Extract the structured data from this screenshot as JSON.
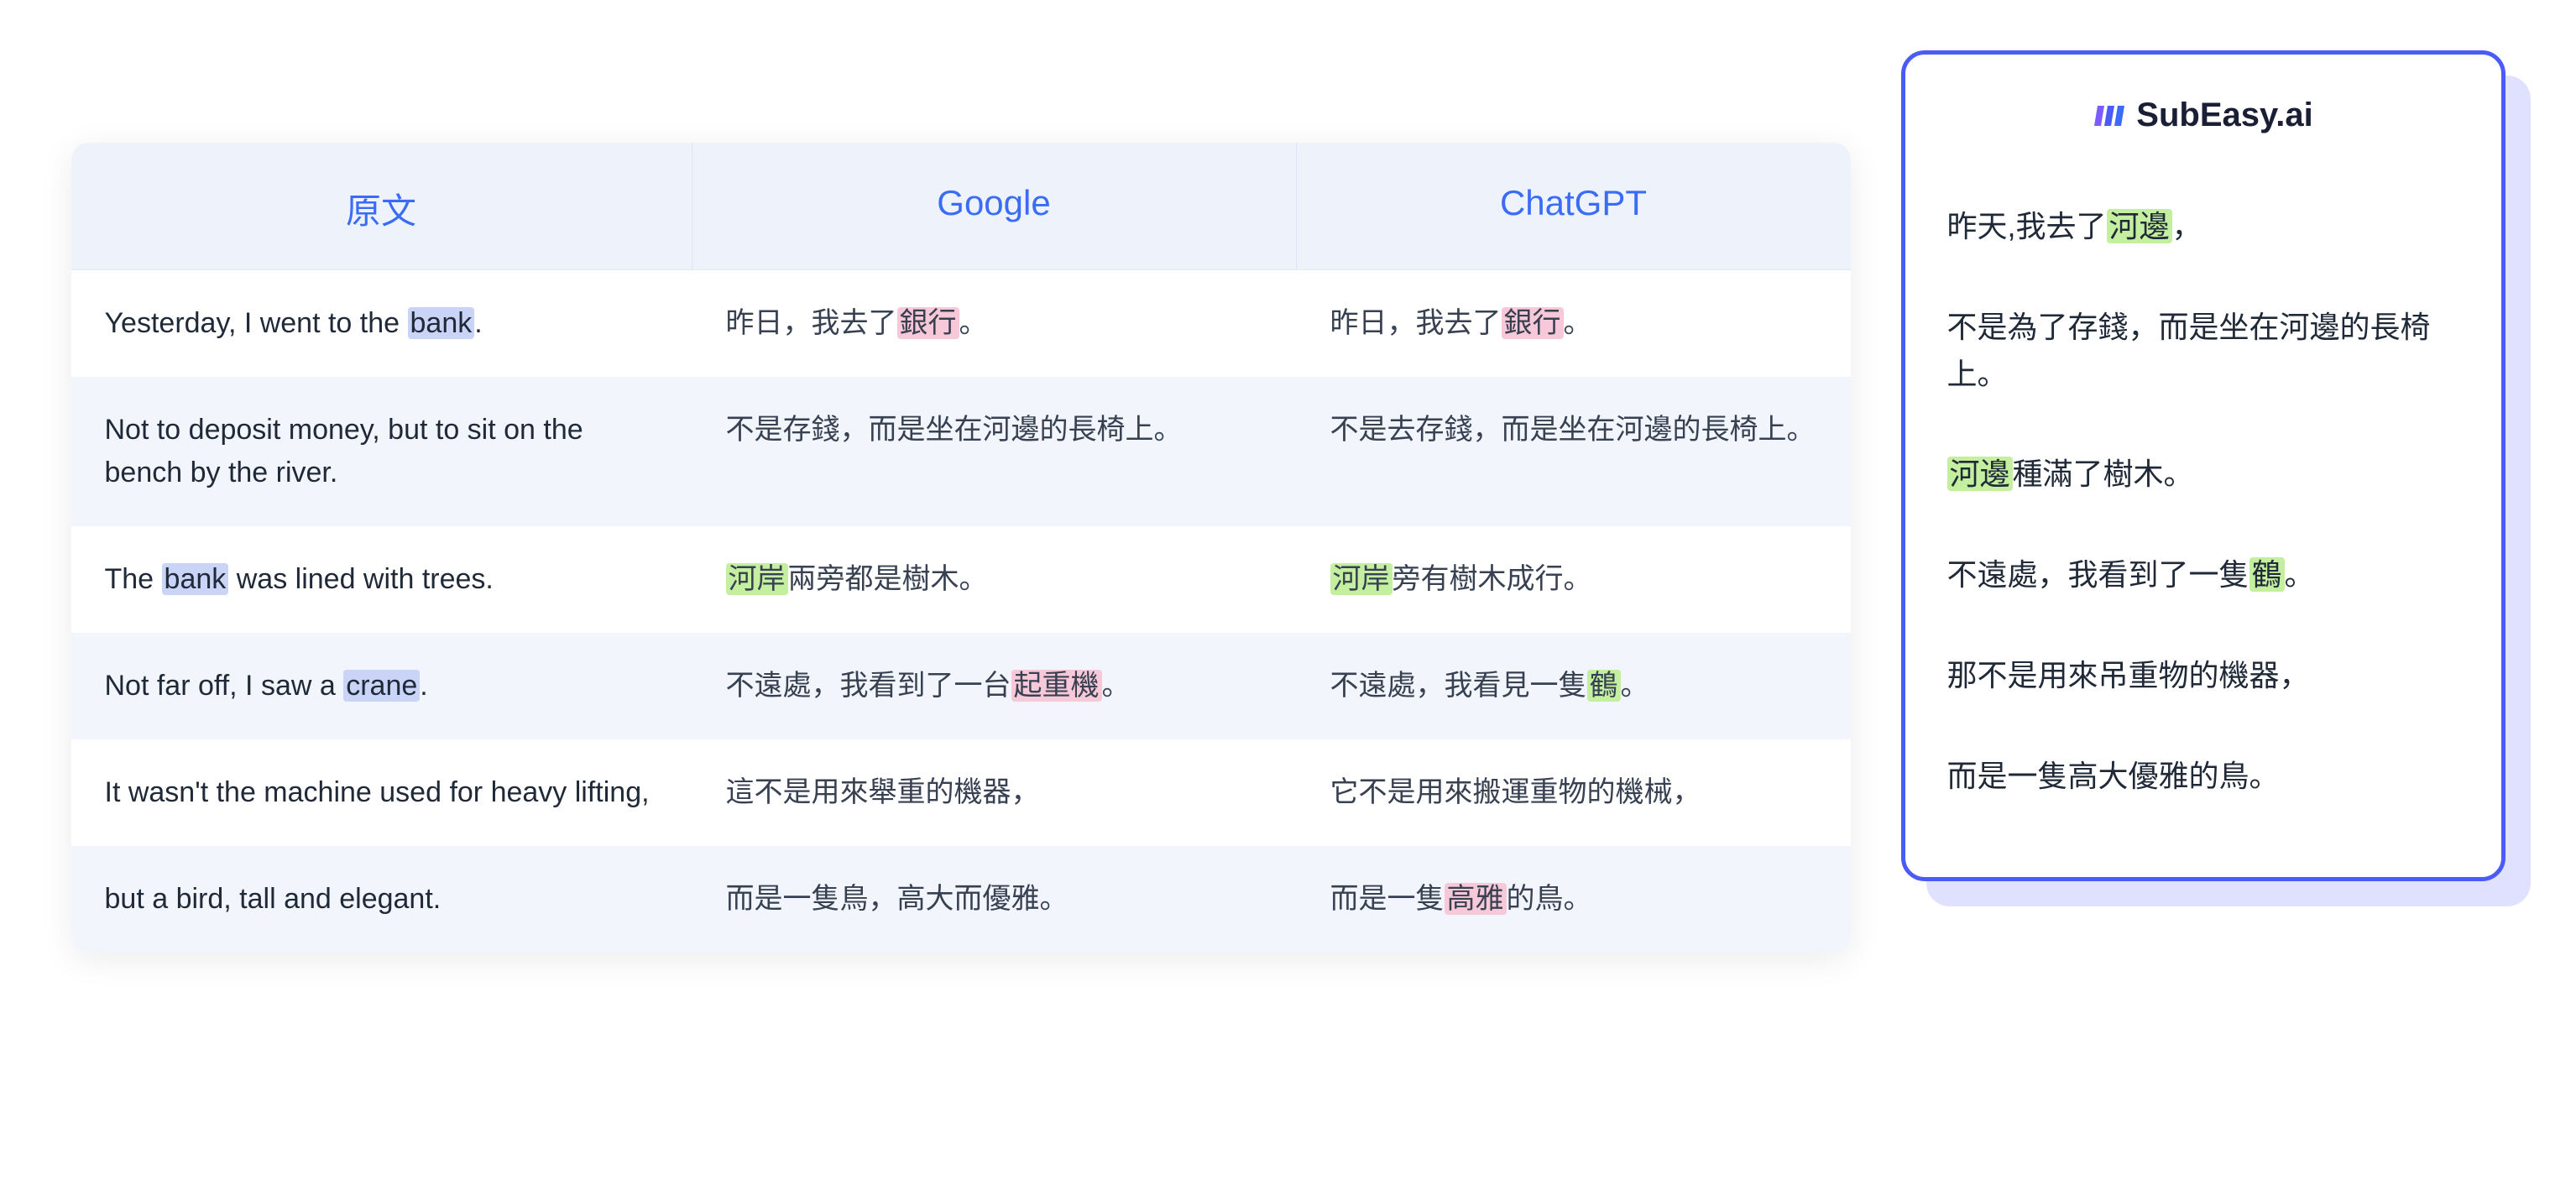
{
  "table": {
    "headers": {
      "col1": "原文",
      "col2": "Google",
      "col3": "ChatGPT"
    },
    "rows": [
      {
        "col1": {
          "parts": [
            {
              "t": "Yesterday, I went to the "
            },
            {
              "t": "bank",
              "hl": "blue"
            },
            {
              "t": "."
            }
          ]
        },
        "col2": {
          "parts": [
            {
              "t": "昨日，我去了"
            },
            {
              "t": "銀行",
              "hl": "pink"
            },
            {
              "t": "。"
            }
          ]
        },
        "col3": {
          "parts": [
            {
              "t": "昨日，我去了"
            },
            {
              "t": "銀行",
              "hl": "pink"
            },
            {
              "t": "。"
            }
          ]
        }
      },
      {
        "col1": {
          "parts": [
            {
              "t": "Not to deposit money, but to sit on the bench by the river."
            }
          ]
        },
        "col2": {
          "parts": [
            {
              "t": "不是存錢，而是坐在河邊的長椅上。"
            }
          ]
        },
        "col3": {
          "parts": [
            {
              "t": "不是去存錢，而是坐在河邊的長椅上。"
            }
          ]
        }
      },
      {
        "col1": {
          "parts": [
            {
              "t": "The "
            },
            {
              "t": "bank",
              "hl": "blue"
            },
            {
              "t": " was lined with trees."
            }
          ]
        },
        "col2": {
          "parts": [
            {
              "t": "河岸",
              "hl": "green"
            },
            {
              "t": "兩旁都是樹木。"
            }
          ]
        },
        "col3": {
          "parts": [
            {
              "t": "河岸",
              "hl": "green"
            },
            {
              "t": "旁有樹木成行。"
            }
          ]
        }
      },
      {
        "col1": {
          "parts": [
            {
              "t": "Not far off, I saw a "
            },
            {
              "t": "crane",
              "hl": "blue"
            },
            {
              "t": "."
            }
          ]
        },
        "col2": {
          "parts": [
            {
              "t": "不遠處，我看到了一台"
            },
            {
              "t": "起重機",
              "hl": "pink"
            },
            {
              "t": "。"
            }
          ]
        },
        "col3": {
          "parts": [
            {
              "t": "不遠處，我看見一隻"
            },
            {
              "t": "鶴",
              "hl": "green"
            },
            {
              "t": "。"
            }
          ]
        }
      },
      {
        "col1": {
          "parts": [
            {
              "t": "It wasn't the machine used for heavy lifting,"
            }
          ]
        },
        "col2": {
          "parts": [
            {
              "t": "這不是用來舉重的機器，"
            }
          ]
        },
        "col3": {
          "parts": [
            {
              "t": "它不是用來搬運重物的機械，"
            }
          ]
        }
      },
      {
        "col1": {
          "parts": [
            {
              "t": "but a bird, tall and elegant."
            }
          ]
        },
        "col2": {
          "parts": [
            {
              "t": "而是一隻鳥，高大而優雅。"
            }
          ]
        },
        "col3": {
          "parts": [
            {
              "t": "而是一隻"
            },
            {
              "t": "高雅",
              "hl": "pink"
            },
            {
              "t": "的鳥。"
            }
          ]
        }
      }
    ]
  },
  "card": {
    "brand": "SubEasy.ai",
    "items": [
      {
        "parts": [
          {
            "t": "昨天,我去了"
          },
          {
            "t": "河邊",
            "hl": "green"
          },
          {
            "t": "，"
          }
        ]
      },
      {
        "parts": [
          {
            "t": "不是為了存錢，而是坐在河邊的長椅上。"
          }
        ]
      },
      {
        "parts": [
          {
            "t": "河邊",
            "hl": "green"
          },
          {
            "t": "種滿了樹木。"
          }
        ]
      },
      {
        "parts": [
          {
            "t": "不遠處，我看到了一隻"
          },
          {
            "t": "鶴",
            "hl": "green"
          },
          {
            "t": "。"
          }
        ]
      },
      {
        "parts": [
          {
            "t": "那不是用來吊重物的機器，"
          }
        ]
      },
      {
        "parts": [
          {
            "t": "而是一隻高大優雅的鳥。"
          }
        ]
      }
    ]
  },
  "colors": {
    "header_bg": "#eef2fb",
    "header_text": "#3b6cf6",
    "row_alt_bg": "#f2f5fb",
    "card_border": "#4b5bf7",
    "hl_blue": "#c9d4f7",
    "hl_pink": "#f7c9d8",
    "hl_green": "#c3ef9f"
  }
}
